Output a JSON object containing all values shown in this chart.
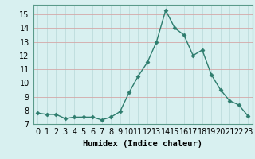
{
  "x": [
    0,
    1,
    2,
    3,
    4,
    5,
    6,
    7,
    8,
    9,
    10,
    11,
    12,
    13,
    14,
    15,
    16,
    17,
    18,
    19,
    20,
    21,
    22,
    23
  ],
  "y": [
    7.8,
    7.7,
    7.7,
    7.4,
    7.5,
    7.5,
    7.5,
    7.3,
    7.5,
    7.9,
    9.3,
    10.5,
    11.5,
    13.0,
    15.3,
    14.0,
    13.5,
    12.0,
    12.4,
    10.6,
    9.5,
    8.7,
    8.4,
    7.6
  ],
  "xlabel": "Humidex (Indice chaleur)",
  "ylim": [
    7,
    15.7
  ],
  "xlim": [
    -0.5,
    23.5
  ],
  "yticks": [
    7,
    8,
    9,
    10,
    11,
    12,
    13,
    14,
    15
  ],
  "line_color": "#2e7d6e",
  "marker": "D",
  "marker_size": 2.5,
  "bg_color": "#d8f0f0",
  "grid_color_major": "#c8a8a8",
  "grid_color_minor": "#c8e8e8",
  "xlabel_fontsize": 7.5,
  "tick_fontsize": 7,
  "line_width": 1.0
}
